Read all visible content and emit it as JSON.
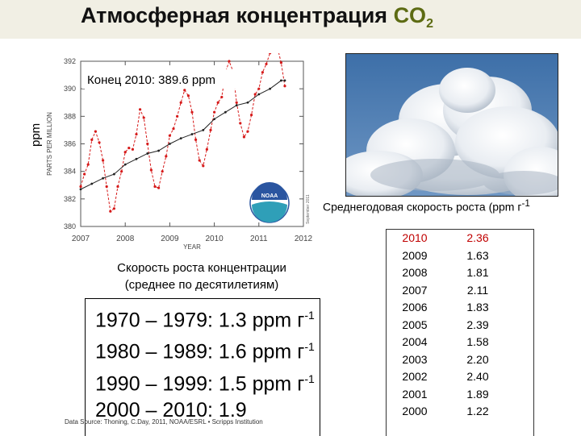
{
  "header": {
    "title_main": "Атмосферная концентрация ",
    "title_co": "CO",
    "title_sub": "2"
  },
  "side_label": "ppm",
  "chart_data": {
    "type": "line",
    "annotation": "Конец 2010: 389.6 ppm",
    "xlabel": "YEAR",
    "ylabel": "PARTS PER MILLION",
    "side_note": "September 2011",
    "x_ticks": [
      "2007",
      "2008",
      "2009",
      "2010",
      "2011",
      "2012"
    ],
    "y_ticks": [
      "380",
      "382",
      "384",
      "386",
      "388",
      "390",
      "392"
    ],
    "xlim": [
      2007,
      2012
    ],
    "ylim": [
      380,
      392
    ],
    "grid": false,
    "logo": "NOAA",
    "series": [
      {
        "color": "#d61a1a",
        "x": [
          2007.0,
          2007.083,
          2007.167,
          2007.25,
          2007.333,
          2007.417,
          2007.5,
          2007.583,
          2007.667,
          2007.75,
          2007.833,
          2007.917,
          2008.0,
          2008.083,
          2008.167,
          2008.25,
          2008.333,
          2008.417,
          2008.5,
          2008.583,
          2008.667,
          2008.75,
          2008.833,
          2008.917,
          2009.0,
          2009.083,
          2009.167,
          2009.25,
          2009.333,
          2009.417,
          2009.5,
          2009.583,
          2009.667,
          2009.75,
          2009.833,
          2009.917,
          2010.0,
          2010.083,
          2010.167,
          2010.25,
          2010.333,
          2010.417,
          2010.5,
          2010.583,
          2010.667,
          2010.75,
          2010.833,
          2010.917,
          2011.0,
          2011.083,
          2011.167,
          2011.25,
          2011.333,
          2011.417,
          2011.5,
          2011.583
        ],
        "values": [
          382.9,
          383.8,
          384.5,
          386.3,
          386.9,
          386.1,
          384.8,
          382.9,
          381.1,
          381.3,
          382.9,
          384.0,
          385.4,
          385.7,
          385.6,
          386.7,
          388.5,
          387.9,
          386.0,
          384.1,
          382.9,
          382.8,
          384.0,
          385.1,
          386.6,
          387.1,
          388.0,
          389.0,
          389.9,
          389.5,
          388.3,
          386.3,
          384.8,
          384.4,
          385.6,
          387.0,
          388.3,
          389.0,
          389.4,
          391.2,
          392.0,
          391.3,
          389.0,
          387.5,
          386.5,
          386.9,
          388.1,
          389.6,
          390.0,
          391.2,
          391.8,
          392.6,
          393.1,
          393.0,
          391.9,
          390.2
        ]
      },
      {
        "color": "#222222",
        "x": [
          2007.0,
          2007.25,
          2007.5,
          2007.75,
          2008.0,
          2008.25,
          2008.5,
          2008.75,
          2009.0,
          2009.25,
          2009.5,
          2009.75,
          2010.0,
          2010.25,
          2010.5,
          2010.75,
          2011.0,
          2011.25,
          2011.5,
          2011.583
        ],
        "values": [
          382.7,
          383.1,
          383.5,
          383.8,
          384.5,
          384.9,
          385.3,
          385.5,
          386.0,
          386.4,
          386.7,
          387.0,
          387.8,
          388.3,
          388.8,
          389.0,
          389.6,
          390.0,
          390.6,
          390.6
        ]
      }
    ]
  },
  "photo_alt": "cumulus clouds photo",
  "growth": {
    "title": "Среднегодовая скорость роста (ppm г",
    "title_sup": "-1",
    "rows": [
      {
        "year": "2010",
        "value": "2.36"
      },
      {
        "year": "2009",
        "value": "1.63"
      },
      {
        "year": "2008",
        "value": "1.81"
      },
      {
        "year": "2007",
        "value": "2.11"
      },
      {
        "year": "2006",
        "value": "1.83"
      },
      {
        "year": "2005",
        "value": "2.39"
      },
      {
        "year": "2004",
        "value": "1.58"
      },
      {
        "year": "2003",
        "value": "2.20"
      },
      {
        "year": "2002",
        "value": "2.40"
      },
      {
        "year": "2001",
        "value": "1.89"
      },
      {
        "year": "2000",
        "value": "1.22"
      }
    ],
    "highlight_color": "#c00000"
  },
  "decades": {
    "title_line1": "Скорость роста концентрации",
    "title_line2": "(среднее по десятилетиям)",
    "t1": "1970 – 1979: 1.3 ppm г",
    "t2": " 1980 – 1989: 1.6 ppm г",
    "t3": " 1990 – 1999: 1.5 ppm г",
    "t4": " 2000 – 2010: 1.9",
    "sup": "-1"
  },
  "source": "Data Source: Thoning, C.Day, 2011, NOAA/ESRL • Scripps Institution"
}
